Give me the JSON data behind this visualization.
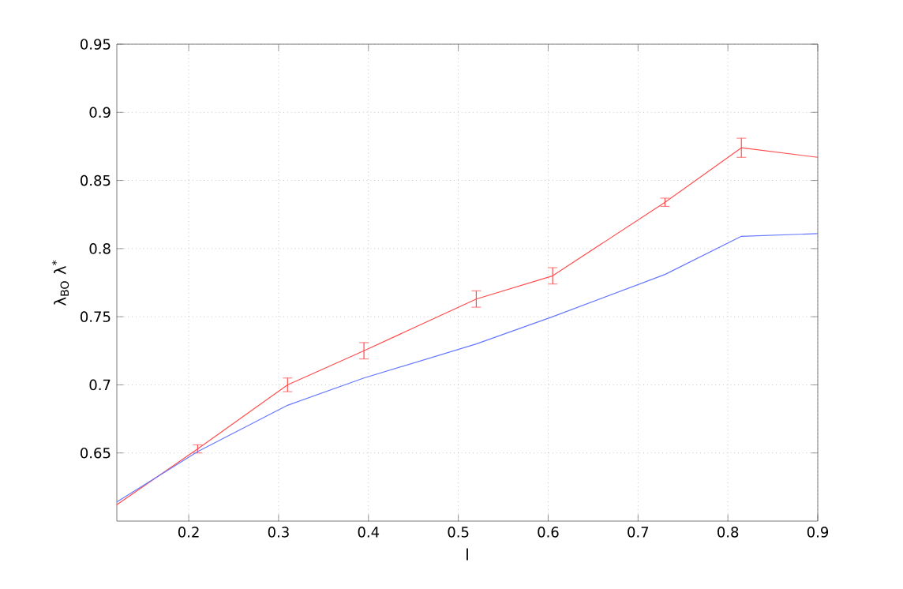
{
  "chart_data": {
    "type": "line",
    "xlabel": "l",
    "ylabel": "λ$_{BO}$   λ$^{*}$",
    "xlim": [
      0.12,
      0.9
    ],
    "ylim": [
      0.6,
      0.95
    ],
    "xticks": [
      0.2,
      0.3,
      0.4,
      0.5,
      0.6,
      0.7,
      0.8,
      0.9
    ],
    "yticks": [
      0.65,
      0.7,
      0.75,
      0.8,
      0.85,
      0.9,
      0.95
    ],
    "grid": true,
    "marker": "none",
    "line_style": "solid",
    "x": [
      0.12,
      0.21,
      0.31,
      0.395,
      0.52,
      0.605,
      0.73,
      0.815,
      0.9
    ],
    "series": [
      {
        "color": "#ff4d4d",
        "values": [
          0.612,
          0.653,
          0.7,
          0.725,
          0.763,
          0.78,
          0.834,
          0.874,
          0.867
        ],
        "errors": [
          null,
          0.003,
          0.005,
          0.006,
          0.006,
          0.006,
          0.003,
          0.007,
          null
        ]
      },
      {
        "color": "#6678ff",
        "values": [
          0.614,
          0.651,
          0.685,
          0.705,
          0.73,
          0.75,
          0.781,
          0.809,
          0.811
        ]
      }
    ]
  }
}
